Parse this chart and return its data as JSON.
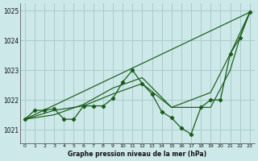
{
  "background_color": "#cce8e8",
  "grid_color": "#aacccc",
  "line_color": "#1a5c1a",
  "title": "Graphe pression niveau de la mer (hPa)",
  "xlim": [
    -0.5,
    23.5
  ],
  "ylim": [
    1020.55,
    1025.25
  ],
  "yticks": [
    1021,
    1022,
    1023,
    1024,
    1025
  ],
  "xticks": [
    0,
    1,
    2,
    3,
    4,
    5,
    6,
    7,
    8,
    9,
    10,
    11,
    12,
    13,
    14,
    15,
    16,
    17,
    18,
    19,
    20,
    21,
    22,
    23
  ],
  "series1_x": [
    0,
    1,
    2,
    3,
    4,
    5,
    6,
    7,
    8,
    9,
    10,
    11,
    12,
    13,
    14,
    15,
    16,
    17,
    18,
    19,
    20,
    21,
    22,
    23
  ],
  "series1_y": [
    1021.35,
    1021.65,
    1021.65,
    1021.7,
    1021.35,
    1021.35,
    1021.8,
    1021.8,
    1021.8,
    1022.05,
    1022.6,
    1023.0,
    1022.55,
    1022.2,
    1021.6,
    1021.4,
    1021.05,
    1020.85,
    1021.75,
    1022.0,
    1022.0,
    1023.55,
    1024.1,
    1024.95
  ],
  "series2_x": [
    0,
    3,
    6,
    9,
    12,
    15,
    16,
    18,
    19,
    21,
    22,
    23
  ],
  "series2_y": [
    1021.35,
    1021.65,
    1021.8,
    1022.2,
    1022.55,
    1021.75,
    1021.75,
    1021.75,
    1021.75,
    1023.0,
    1024.1,
    1024.95
  ],
  "series3_x": [
    0,
    3,
    6,
    9,
    12,
    15,
    19,
    21,
    23
  ],
  "series3_y": [
    1021.35,
    1021.5,
    1021.85,
    1022.4,
    1022.75,
    1021.75,
    1022.25,
    1023.55,
    1024.95
  ],
  "series4_x": [
    0,
    23
  ],
  "series4_y": [
    1021.35,
    1024.95
  ]
}
